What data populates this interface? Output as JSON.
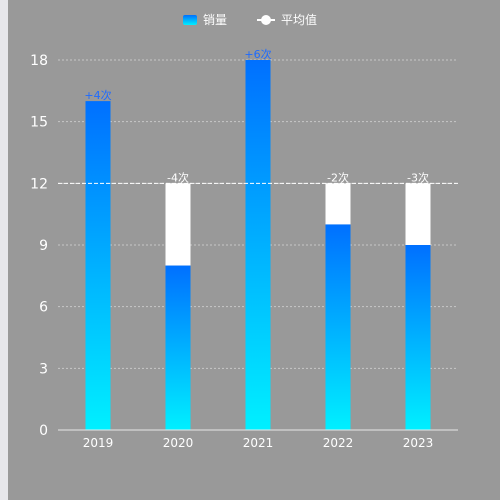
{
  "legend": {
    "bar_label": "销量",
    "avg_label": "平均值"
  },
  "colors": {
    "panel_bg": "#999999",
    "bar_top": "#0070ff",
    "bar_bottom": "#00f0ff",
    "above_avg_label": "#1e6bff",
    "below_avg_label": "#ffffff",
    "avg_line": "#ffffff"
  },
  "chart_data": {
    "type": "bar",
    "categories": [
      "2019",
      "2020",
      "2021",
      "2022",
      "2023"
    ],
    "series": [
      {
        "name": "销量",
        "values": [
          16,
          8,
          18,
          10,
          9
        ]
      }
    ],
    "average": {
      "name": "平均值",
      "value": 12
    },
    "diff_labels": [
      "+4次",
      "-4次",
      "+6次",
      "-2次",
      "-3次"
    ],
    "ylim": [
      0,
      18
    ],
    "yticks": [
      0,
      3,
      6,
      9,
      12,
      15,
      18
    ],
    "grid": true,
    "legend_position": "top-center"
  }
}
